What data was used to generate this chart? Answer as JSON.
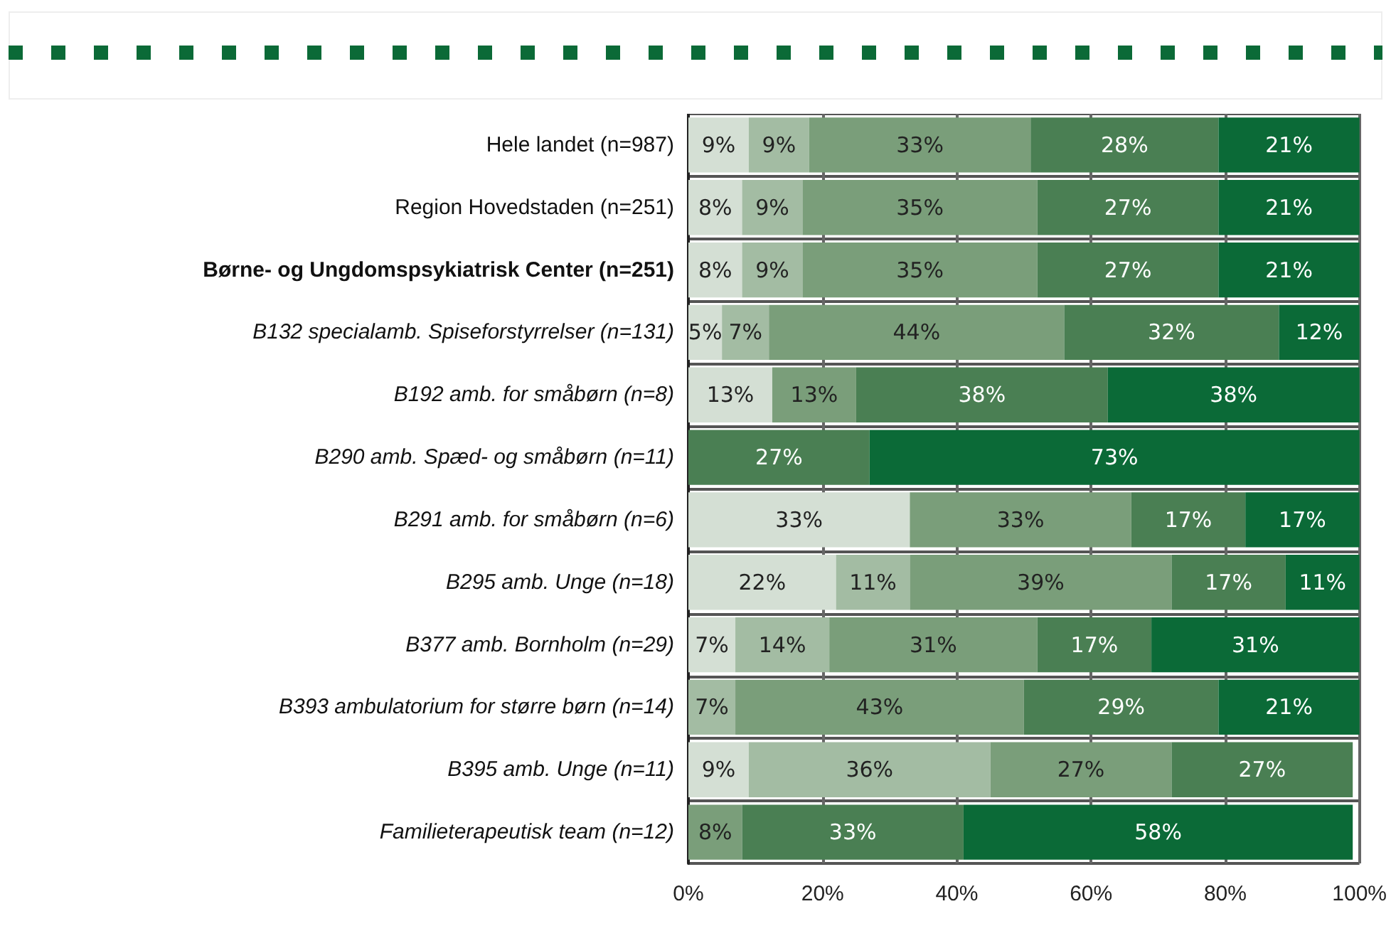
{
  "chart_data": {
    "type": "bar",
    "orientation": "horizontal",
    "stacked": true,
    "categories": [
      "Hele landet (n=987)",
      "Region Hovedstaden (n=251)",
      "Børne- og Ungdomspsykiatrisk Center (n=251)",
      "B132 specialamb. Spiseforstyrrelser (n=131)",
      "B192 amb. for småbørn (n=8)",
      "B290 amb. Spæd- og småbørn (n=11)",
      "B291 amb. for småbørn (n=6)",
      "B295 amb. Unge (n=18)",
      "B377 amb. Bornholm (n=29)",
      "B393 ambulatorium for større børn (n=14)",
      "B395 amb. Unge (n=11)",
      "Familieterapeutisk team (n=12)"
    ],
    "series": [
      {
        "color": "#d4dfd4",
        "values": [
          9,
          8,
          8,
          5,
          12.5,
          null,
          33,
          22,
          7,
          null,
          9,
          null
        ],
        "value_labels": [
          "9%",
          "8%",
          "8%",
          "5%",
          "13%",
          null,
          "33%",
          "22%",
          "7%",
          null,
          "9%",
          null
        ]
      },
      {
        "color": "#a3bca3",
        "values": [
          9,
          9,
          9,
          7,
          null,
          null,
          null,
          11,
          14,
          7,
          36,
          null
        ],
        "value_labels": [
          "9%",
          "9%",
          "9%",
          "7%",
          null,
          null,
          null,
          "11%",
          "14%",
          "7%",
          "36%",
          null
        ]
      },
      {
        "color": "#7a9e7a",
        "values": [
          33,
          35,
          35,
          44,
          12.5,
          null,
          33,
          39,
          31,
          43,
          27,
          8
        ],
        "value_labels": [
          "33%",
          "35%",
          "35%",
          "44%",
          "13%",
          null,
          "33%",
          "39%",
          "31%",
          "43%",
          "27%",
          "8%"
        ]
      },
      {
        "color": "#4a7f53",
        "values": [
          28,
          27,
          27,
          32,
          37.5,
          27,
          17,
          17,
          17,
          29,
          27,
          33
        ],
        "value_labels": [
          "28%",
          "27%",
          "27%",
          "32%",
          "38%",
          "27%",
          "17%",
          "17%",
          "17%",
          "29%",
          "27%",
          "33%"
        ]
      },
      {
        "color": "#0b6a37",
        "values": [
          21,
          21,
          21,
          12,
          37.5,
          73,
          17,
          11,
          31,
          21,
          null,
          58
        ],
        "value_labels": [
          "21%",
          "21%",
          "21%",
          "12%",
          "38%",
          "73%",
          "17%",
          "11%",
          "31%",
          "21%",
          null,
          "58%"
        ]
      }
    ],
    "xlim": [
      0,
      100
    ],
    "xticks": [
      {
        "value": 0,
        "label": "0%"
      },
      {
        "value": 20,
        "label": "20%"
      },
      {
        "value": 40,
        "label": "40%"
      },
      {
        "value": 60,
        "label": "60%"
      },
      {
        "value": 80,
        "label": "80%"
      },
      {
        "value": 100,
        "label": "100%"
      }
    ],
    "grid": "x"
  }
}
